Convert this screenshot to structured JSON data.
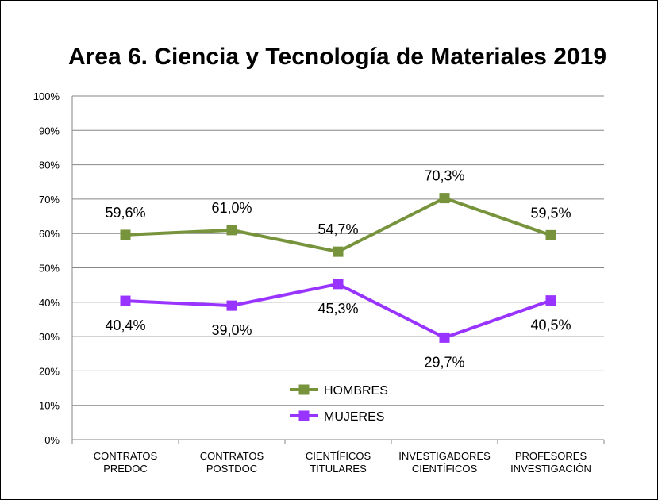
{
  "chart_data": {
    "type": "line",
    "title": "Area 6. Ciencia y Tecnología de Materiales 2019",
    "categories": [
      [
        "CONTRATOS",
        "PREDOC"
      ],
      [
        "CONTRATOS",
        "POSTDOC"
      ],
      [
        "CIENTÍFICOS",
        "TITULARES"
      ],
      [
        "INVESTIGADORES",
        "CIENTÍFICOS"
      ],
      [
        "PROFESORES",
        "INVESTIGACIÓN"
      ]
    ],
    "series": [
      {
        "name": "HOMBRES",
        "color": "#77933c",
        "values": [
          59.6,
          61.0,
          54.7,
          70.3,
          59.5
        ],
        "labels": [
          "59,6%",
          "61,0%",
          "54,7%",
          "70,3%",
          "59,5%"
        ]
      },
      {
        "name": "MUJERES",
        "color": "#9933ff",
        "values": [
          40.4,
          39.0,
          45.3,
          29.7,
          40.5
        ],
        "labels": [
          "40,4%",
          "39,0%",
          "45,3%",
          "29,7%",
          "40,5%"
        ]
      }
    ],
    "ylim": [
      0,
      100
    ],
    "yticks": [
      "0%",
      "10%",
      "20%",
      "30%",
      "40%",
      "50%",
      "60%",
      "70%",
      "80%",
      "90%",
      "100%"
    ],
    "grid": true,
    "legend": "inside-bottom-center"
  }
}
